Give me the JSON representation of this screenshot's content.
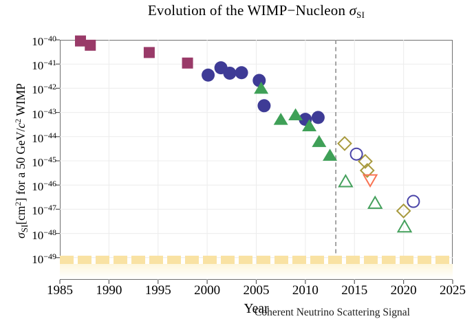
{
  "title": {
    "parts": [
      {
        "t": "Evolution of the WIMP−Nucleon ",
        "s": "n"
      },
      {
        "t": "σ",
        "s": "i"
      },
      {
        "t": "SI",
        "s": "sub"
      }
    ],
    "plain": "Evolution of the WIMP−Nucleon σ_SI"
  },
  "axes": {
    "x": {
      "label": "Year",
      "ticks": [
        1985,
        1990,
        1995,
        2000,
        2005,
        2010,
        2015,
        2020,
        2025
      ],
      "range": [
        1985,
        2025
      ]
    },
    "y": {
      "label_parts": [
        {
          "t": "σ",
          "s": "i"
        },
        {
          "t": "SI",
          "s": "sub"
        },
        {
          "t": "[cm",
          "s": "n"
        },
        {
          "t": "2",
          "s": "sup"
        },
        {
          "t": "] for a 50 GeV/",
          "s": "n"
        },
        {
          "t": "c",
          "s": "i"
        },
        {
          "t": "2",
          "s": "sup"
        },
        {
          "t": " WIMP",
          "s": "n"
        }
      ],
      "plain": "sigma_SI [cm^2] for a 50 GeV/c^2 WIMP",
      "tick_exponents": [
        -40,
        -41,
        -42,
        -43,
        -44,
        -45,
        -46,
        -47,
        -48,
        -49
      ],
      "range_log10": [
        -49.9,
        -40
      ]
    }
  },
  "annotations": {
    "dashed_line_year": 2013.1,
    "dashed_line_color": "#999999",
    "neutrino_band": {
      "label": "Coherent Neutrino Scattering Signal",
      "level_log10": -49.1,
      "dash_color": "#f9e2a3",
      "fade_color": "#fdf6dc"
    }
  },
  "chart_data": {
    "type": "scatter",
    "title": "Evolution of the WIMP−Nucleon σ_SI",
    "xlabel": "Year",
    "ylabel": "sigma_SI [cm^2] for a 50 GeV/c^2 WIMP",
    "x_range": [
      1985,
      2025
    ],
    "y_range": [
      1e-50,
      1e-40
    ],
    "y_scale": "log",
    "grid": true,
    "legend": "none",
    "series": [
      {
        "name": "filled-squares",
        "marker": "square",
        "filled": true,
        "color": "#993a68",
        "points": [
          [
            1987.1,
            9e-41
          ],
          [
            1988.1,
            6e-41
          ],
          [
            1994.1,
            3e-41
          ],
          [
            1998.0,
            1.1e-41
          ]
        ]
      },
      {
        "name": "filled-circles",
        "marker": "circle",
        "filled": true,
        "color": "#3e3b96",
        "points": [
          [
            2000.1,
            3.5e-42
          ],
          [
            2001.4,
            7e-42
          ],
          [
            2002.3,
            4.2e-42
          ],
          [
            2003.5,
            4.4e-42
          ],
          [
            2005.3,
            2.1e-42
          ],
          [
            2005.8,
            1.9e-43
          ],
          [
            2010.0,
            5.2e-44
          ],
          [
            2011.3,
            6.2e-44
          ]
        ]
      },
      {
        "name": "filled-triangles",
        "marker": "triangle-up",
        "filled": true,
        "color": "#3fa057",
        "points": [
          [
            2005.5,
            1e-42
          ],
          [
            2007.5,
            5.2e-44
          ],
          [
            2009.0,
            8e-44
          ],
          [
            2010.4,
            2.8e-44
          ],
          [
            2011.4,
            6.3e-45
          ],
          [
            2012.5,
            1.7e-45
          ]
        ]
      },
      {
        "name": "open-diamonds",
        "marker": "diamond",
        "filled": false,
        "color": "#a89a3e",
        "points": [
          [
            2014.0,
            5.2e-45
          ],
          [
            2016.1,
            9.5e-46
          ],
          [
            2016.3,
            4e-46
          ],
          [
            2020.0,
            8.5e-48
          ]
        ]
      },
      {
        "name": "open-circles",
        "marker": "circle",
        "filled": false,
        "color": "#4a44a8",
        "points": [
          [
            2015.2,
            1.9e-45
          ],
          [
            2021.0,
            2.1e-47
          ]
        ]
      },
      {
        "name": "open-triangles-up",
        "marker": "triangle-up",
        "filled": false,
        "color": "#44a05c",
        "points": [
          [
            2014.1,
            1.4e-46
          ],
          [
            2017.1,
            1.8e-47
          ],
          [
            2020.1,
            1.9e-48
          ]
        ]
      },
      {
        "name": "open-triangle-down",
        "marker": "triangle-down",
        "filled": false,
        "color": "#f97352",
        "points": [
          [
            2016.6,
            1.6e-46
          ]
        ]
      }
    ]
  },
  "style": {
    "frame_color": "#6f6f6f",
    "grid_color": "#ececec",
    "tick_color": "#555555"
  }
}
